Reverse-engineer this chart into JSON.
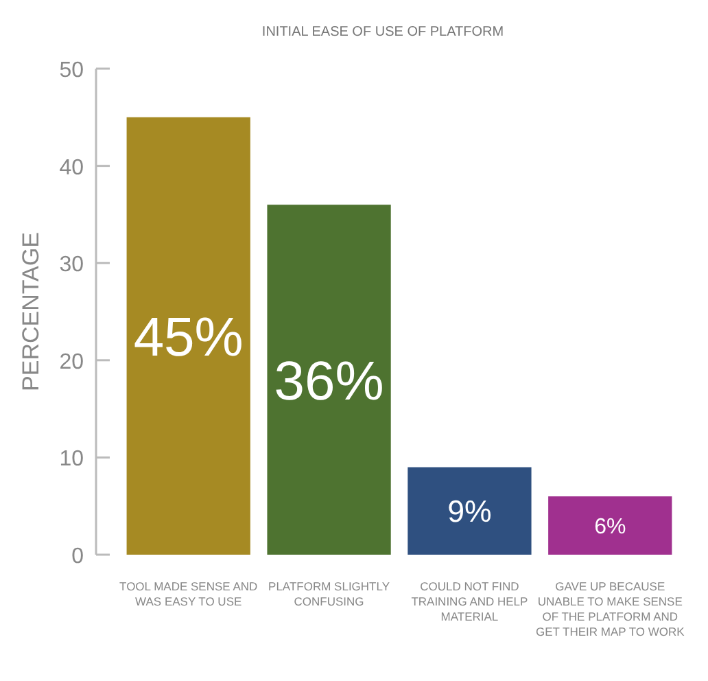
{
  "chart_data": {
    "type": "bar",
    "title": "INITIAL EASE OF USE OF PLATFORM",
    "ylabel": "PERCENTAGE",
    "categories": [
      "TOOL MADE SENSE AND WAS EASY TO USE",
      "PLATFORM SLIGHTLY CONFUSING",
      "COULD NOT FIND TRAINING AND HELP MATERIAL",
      "GAVE UP BECAUSE UNABLE TO MAKE SENSE OF THE PLATFORM AND GET THEIR MAP TO WORK"
    ],
    "values": [
      45,
      36,
      9,
      6
    ],
    "colors": [
      "#a68a23",
      "#4e7330",
      "#2f5080",
      "#a0308f"
    ],
    "value_labels": [
      "45%",
      "36%",
      "9%",
      "6%"
    ],
    "ylim": [
      0,
      50
    ],
    "yticks": [
      0,
      10,
      20,
      30,
      40,
      50
    ],
    "grid": false
  }
}
